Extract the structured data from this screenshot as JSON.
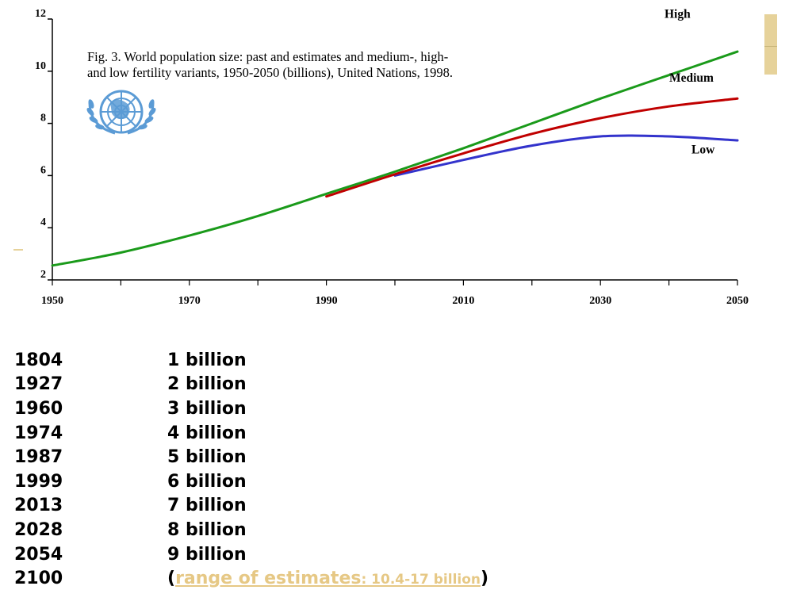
{
  "chart_data": {
    "type": "line",
    "title": "Fig. 3. World population size: past and estimates and medium-, high- and low fertility variants, 1950-2050 (billions), United Nations, 1998.",
    "title_lines": [
      "Fig. 3. World population size: past and estimates and medium-, high-",
      "and low fertility variants, 1950-2050 (billions), United Nations, 1998."
    ],
    "xlabel": "",
    "ylabel": "",
    "xlim": [
      1950,
      2050
    ],
    "ylim": [
      2,
      12
    ],
    "x_ticks": [
      1950,
      1970,
      1990,
      2010,
      2030,
      2050
    ],
    "y_ticks": [
      2,
      4,
      6,
      8,
      10,
      12
    ],
    "series": [
      {
        "name": "High",
        "color": "#1a9a1a",
        "x": [
          1950,
          1960,
          1970,
          1980,
          1990,
          2000,
          2010,
          2020,
          2030,
          2040,
          2050
        ],
        "y": [
          2.55,
          3.05,
          3.7,
          4.45,
          5.3,
          6.15,
          7.05,
          8.0,
          8.95,
          9.85,
          10.75
        ]
      },
      {
        "name": "Medium",
        "color": "#c00000",
        "x": [
          1990,
          2000,
          2010,
          2020,
          2030,
          2040,
          2050
        ],
        "y": [
          5.2,
          6.05,
          6.85,
          7.6,
          8.2,
          8.65,
          8.95
        ]
      },
      {
        "name": "Low",
        "color": "#3333cc",
        "x": [
          2000,
          2010,
          2020,
          2030,
          2040,
          2050
        ],
        "y": [
          6.0,
          6.6,
          7.15,
          7.5,
          7.5,
          7.35
        ]
      }
    ],
    "legend": "inline labels at right end of lines",
    "grid": false
  },
  "deco": {
    "accent_color": "#e6d29a"
  },
  "milestones": [
    {
      "year": "1804",
      "text": "1 billion"
    },
    {
      "year": "1927",
      "text": "2 billion"
    },
    {
      "year": "1960",
      "text": "3 billion"
    },
    {
      "year": "1974",
      "text": "4 billion"
    },
    {
      "year": "1987",
      "text": "5 billion"
    },
    {
      "year": "1999",
      "text": "6 billion"
    },
    {
      "year": "2013",
      "text": "7 billion"
    },
    {
      "year": "2028",
      "text": "8 billion"
    },
    {
      "year": "2054",
      "text": "9 billion"
    }
  ],
  "last_milestone": {
    "year": "2100",
    "open_paren": "(",
    "range_label": "range of estimates",
    "range_value": ": 10.4-17 billion",
    "close_paren": ")"
  }
}
